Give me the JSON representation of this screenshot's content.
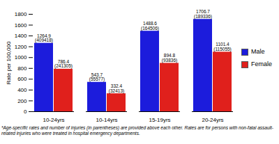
{
  "chart_data": {
    "type": "bar",
    "y_label": "Rate per 100,000",
    "categories": [
      "10-24yrs",
      "10-14yrs",
      "15-19yrs",
      "20-24yrs"
    ],
    "series": [
      {
        "name": "Male",
        "color": "#1c1cdc",
        "values": [
          1264.9,
          543.7,
          1488.6,
          1706.7
        ],
        "count_labels": [
          "(409418)",
          "(55577)",
          "(164506)",
          "(189336)"
        ]
      },
      {
        "name": "Female",
        "color": "#e0201c",
        "values": [
          786.4,
          332.4,
          894.8,
          1101.4
        ],
        "count_labels": [
          "(241305)",
          "(32413)",
          "(93836)",
          "(115055)"
        ]
      }
    ],
    "ylim": [
      0,
      1800
    ],
    "yticks": [
      0,
      200,
      400,
      600,
      800,
      1000,
      1200,
      1400,
      1600,
      1800
    ],
    "grid": false,
    "data_labels": true,
    "legend": "right",
    "caption": "*Age-specific rates and number of injuries (in parentheses) are provided above each other. Rates are for persons with non-fatal assault-related injuries who were treated in hospital emergency departments."
  }
}
